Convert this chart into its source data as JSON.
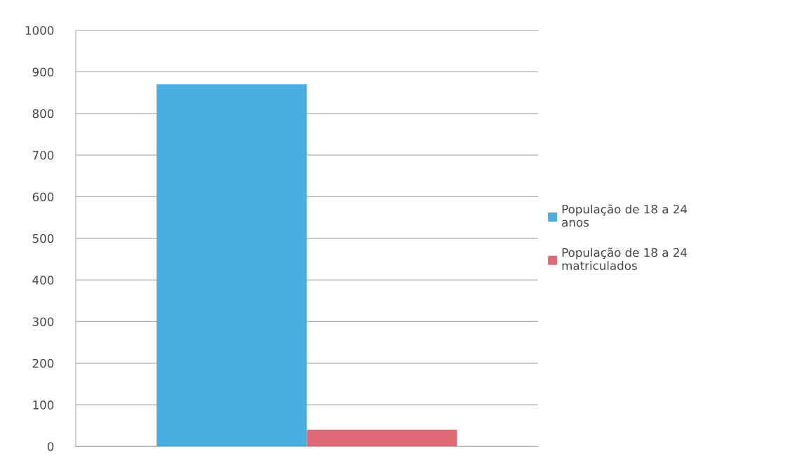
{
  "chart_data": {
    "type": "bar",
    "categories": [
      null
    ],
    "series": [
      {
        "name": "População de 18 a 24 anos",
        "color": "#4aaee0",
        "values": [
          870
        ]
      },
      {
        "name": "População de 18 a 24 matriculados",
        "color": "#e06b78",
        "values": [
          40
        ]
      }
    ],
    "ylim": [
      0,
      1000
    ],
    "yticks": [
      0,
      100,
      200,
      300,
      400,
      500,
      600,
      700,
      800,
      900,
      1000
    ],
    "grid": "y",
    "legend": "right"
  }
}
